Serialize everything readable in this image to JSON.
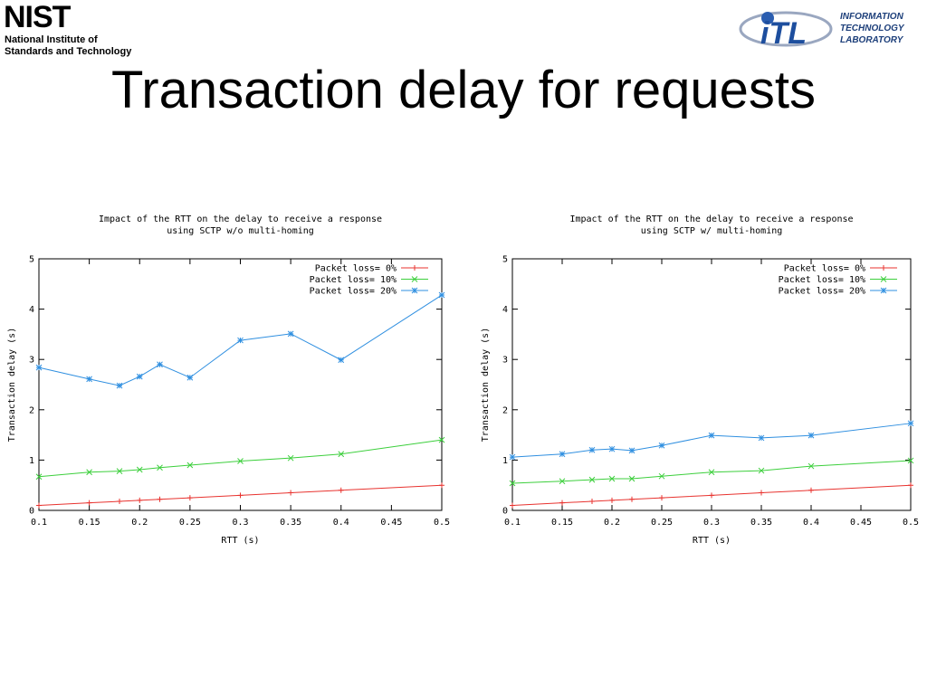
{
  "header": {
    "nist_logo": "NIST",
    "nist_line1": "National Institute of",
    "nist_line2": "Standards and Technology",
    "itl_logo": "iTL",
    "itl_line1": "INFORMATION",
    "itl_line2": "TECHNOLOGY",
    "itl_line3": "LABORATORY",
    "title": "Transaction delay for requests"
  },
  "chart_data": [
    {
      "type": "line",
      "title": "Impact of the RTT on the delay to receive a response",
      "subtitle": "using SCTP w/o multi-homing",
      "x_label": "RTT (s)",
      "y_label": "Transaction delay (s)",
      "x": [
        0.1,
        0.15,
        0.18,
        0.2,
        0.22,
        0.25,
        0.3,
        0.35,
        0.4,
        0.5
      ],
      "series": [
        {
          "name": "Packet loss= 0%",
          "color": "#e8332f",
          "marker": "plus",
          "values": [
            0.1,
            0.15,
            0.18,
            0.2,
            0.22,
            0.25,
            0.3,
            0.35,
            0.4,
            0.5
          ]
        },
        {
          "name": "Packet loss= 10%",
          "color": "#3ccf3c",
          "marker": "cross",
          "values": [
            0.67,
            0.76,
            0.78,
            0.81,
            0.85,
            0.9,
            0.98,
            1.04,
            1.12,
            1.4
          ]
        },
        {
          "name": "Packet loss= 20%",
          "color": "#2f8fe0",
          "marker": "star",
          "values": [
            2.84,
            2.61,
            2.48,
            2.66,
            2.9,
            2.64,
            3.38,
            3.51,
            2.99,
            4.28
          ]
        }
      ],
      "xlim": [
        0.1,
        0.5
      ],
      "ylim": [
        0,
        5
      ],
      "xticks": [
        0.1,
        0.15,
        0.2,
        0.25,
        0.3,
        0.35,
        0.4,
        0.45,
        0.5
      ],
      "yticks": [
        0,
        1,
        2,
        3,
        4,
        5
      ],
      "grid": false,
      "legend": "top-right"
    },
    {
      "type": "line",
      "title": "Impact of the RTT on the delay to receive a response",
      "subtitle": "using SCTP w/ multi-homing",
      "x_label": "RTT (s)",
      "y_label": "Transaction delay (s)",
      "x": [
        0.1,
        0.15,
        0.18,
        0.2,
        0.22,
        0.25,
        0.3,
        0.35,
        0.4,
        0.5
      ],
      "series": [
        {
          "name": "Packet loss= 0%",
          "color": "#e8332f",
          "marker": "plus",
          "values": [
            0.1,
            0.15,
            0.18,
            0.2,
            0.22,
            0.25,
            0.3,
            0.35,
            0.4,
            0.5
          ]
        },
        {
          "name": "Packet loss= 10%",
          "color": "#3ccf3c",
          "marker": "cross",
          "values": [
            0.54,
            0.58,
            0.61,
            0.63,
            0.63,
            0.68,
            0.76,
            0.79,
            0.88,
            0.99
          ]
        },
        {
          "name": "Packet loss= 20%",
          "color": "#2f8fe0",
          "marker": "star",
          "values": [
            1.06,
            1.12,
            1.2,
            1.22,
            1.19,
            1.29,
            1.49,
            1.44,
            1.49,
            1.73
          ]
        }
      ],
      "xlim": [
        0.1,
        0.5
      ],
      "ylim": [
        0,
        5
      ],
      "xticks": [
        0.1,
        0.15,
        0.2,
        0.25,
        0.3,
        0.35,
        0.4,
        0.45,
        0.5
      ],
      "yticks": [
        0,
        1,
        2,
        3,
        4,
        5
      ],
      "grid": false,
      "legend": "top-right"
    }
  ]
}
